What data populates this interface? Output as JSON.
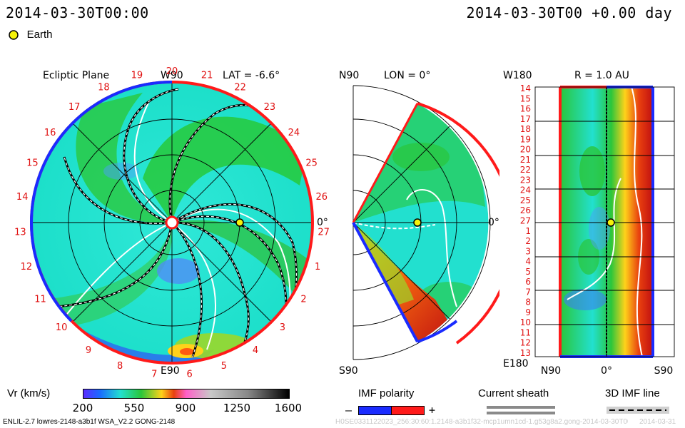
{
  "header": {
    "left_timestamp": "2014-03-30T00:00",
    "right_timestamp": "2014-03-30T00 +0.00 day",
    "legend_label": "Earth"
  },
  "panels": {
    "ecliptic": {
      "title": "Ecliptic Plane",
      "top_label": "W90",
      "bottom_label": "E90",
      "right_label": "0°",
      "lat_label": "LAT = -6.6°",
      "rotation_labels": [
        "20",
        "21",
        "22",
        "23",
        "24",
        "25",
        "26",
        "27",
        "1",
        "2",
        "3",
        "4",
        "5",
        "6",
        "7",
        "8",
        "9",
        "10",
        "11",
        "12",
        "13",
        "14",
        "15",
        "16",
        "17",
        "18",
        "19"
      ]
    },
    "meridional": {
      "top_label": "N90",
      "lon_label": "LON = 0°",
      "bottom_label": "S90",
      "right_label": "0°"
    },
    "radial": {
      "top_left_label": "W180",
      "r_label": "R = 1.0 AU",
      "bottom_left_label": "E180",
      "rows": [
        "14",
        "15",
        "16",
        "17",
        "18",
        "19",
        "20",
        "21",
        "22",
        "23",
        "24",
        "25",
        "26",
        "27",
        "1",
        "2",
        "3",
        "4",
        "5",
        "6",
        "7",
        "8",
        "9",
        "10",
        "11",
        "12",
        "13"
      ],
      "x_labels": [
        "N90",
        "0°",
        "S90"
      ]
    }
  },
  "colorbar": {
    "label": "Vr (km/s)",
    "ticks": [
      "200",
      "550",
      "900",
      "1250",
      "1600"
    ],
    "range": [
      200,
      1600
    ]
  },
  "legends": {
    "imf_title": "IMF polarity",
    "imf_minus": "–",
    "imf_plus": "+",
    "imf_neg_color": "#1a2bff",
    "imf_pos_color": "#ff1a1a",
    "sheath_title": "Current sheath",
    "imf3d_title": "3D IMF line"
  },
  "footer": {
    "model_info": "ENLIL-2.7 lowres-2148-a3b1f WSA_V2.2 GONG-2148",
    "faint_info": "H0SE0331122023_256:30:60:1.2148-a3b1f32-mcp1umn1cd-1.g53g8a2.gong-2014-03-30T00",
    "faint_date": "2014-03-31"
  },
  "chart_data": [
    {
      "type": "heatmap",
      "title": "Ecliptic Plane",
      "quantity": "Vr (km/s)",
      "range": [
        200,
        1600
      ],
      "earth_position": {
        "lon_deg": 0,
        "r_au": 1.0
      },
      "colors": {
        "background": "#19e6d2",
        "slow": "#1ec832",
        "fast": "#d83a12",
        "earth": "#f5f20a"
      }
    },
    {
      "type": "heatmap",
      "title": "LON = 0°",
      "quantity": "Vr (km/s)",
      "latitude_range_deg": [
        -60,
        60
      ]
    },
    {
      "type": "heatmap",
      "title": "R = 1.0 AU",
      "quantity": "Vr (km/s)",
      "x_axis": [
        "N90",
        "0°",
        "S90"
      ]
    }
  ]
}
